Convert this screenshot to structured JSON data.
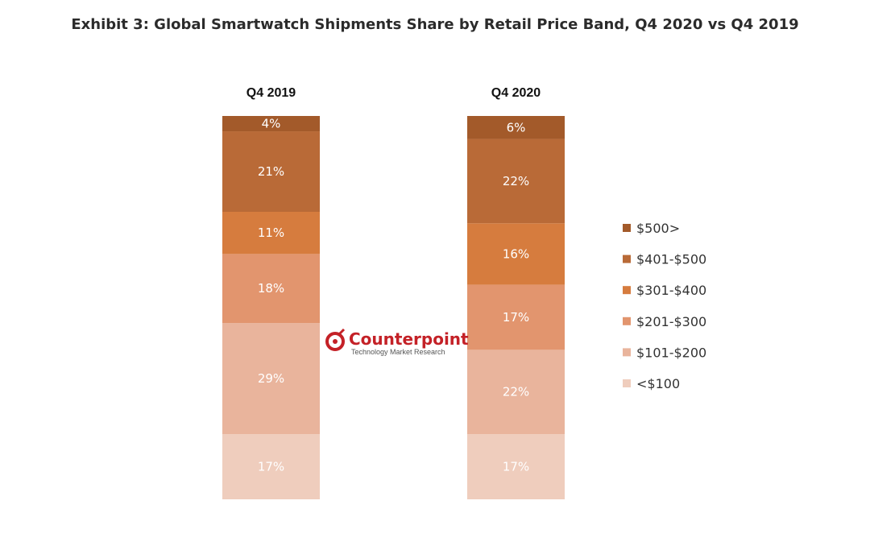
{
  "title": "Exhibit 3: Global Smartwatch Shipments Share by Retail Price Band, Q4 2020 vs Q4 2019",
  "watermark": {
    "brand": "Counterpoint",
    "tagline": "Technology Market Research"
  },
  "chart_data": {
    "type": "bar",
    "stacked": true,
    "normalized_percent": true,
    "categories": [
      "Q4 2019",
      "Q4 2020"
    ],
    "series": [
      {
        "name": "<$100",
        "color": "#efcdbd",
        "values": [
          17,
          17
        ],
        "labels": [
          "17%",
          "17%"
        ]
      },
      {
        "name": "$101-$200",
        "color": "#e9b49c",
        "values": [
          29,
          22
        ],
        "labels": [
          "29%",
          "22%"
        ]
      },
      {
        "name": "$201-$300",
        "color": "#e2956e",
        "values": [
          18,
          17
        ],
        "labels": [
          "18%",
          "17%"
        ]
      },
      {
        "name": "$301-$400",
        "color": "#d67c3e",
        "values": [
          11,
          16
        ],
        "labels": [
          "11%",
          "16%"
        ]
      },
      {
        "name": "$401-$500",
        "color": "#b96a37",
        "values": [
          21,
          22
        ],
        "labels": [
          "21%",
          "22%"
        ]
      },
      {
        "name": "$500>",
        "color": "#a35a2a",
        "values": [
          4,
          6
        ],
        "labels": [
          "4%",
          "6%"
        ]
      }
    ],
    "legend_position": "right",
    "legend_order": [
      "$500>",
      "$401-$500",
      "$301-$400",
      "$201-$300",
      "$101-$200",
      "<$100"
    ],
    "ylim": [
      0,
      100
    ],
    "grid": false
  }
}
